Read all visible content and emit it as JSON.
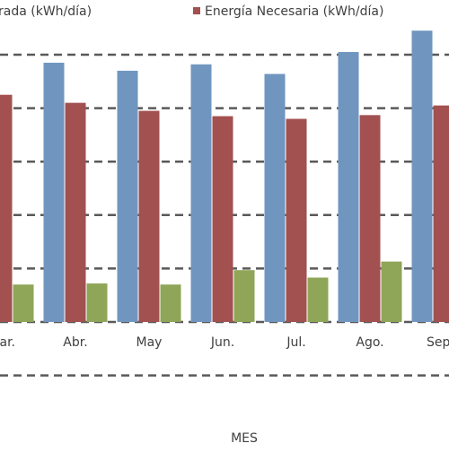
{
  "chart_data": {
    "type": "bar",
    "xlabel": "MES",
    "categories": [
      "Mar.",
      "Abr.",
      "May",
      "Jun.",
      "Jul.",
      "Ago.",
      "Sep."
    ],
    "visible_category_labels": [
      "ar.",
      "Abr.",
      "May",
      "Jun.",
      "Jul.",
      "Ago.",
      "Sep"
    ],
    "series": [
      {
        "name": "Energía Generada (kWh/día)",
        "visible_legend_label": "rada (kWh/día)",
        "color": "#7096C0",
        "values": [
          null,
          4.85,
          4.7,
          4.82,
          4.64,
          5.05,
          5.45
        ]
      },
      {
        "name": "Energía Necesaria (kWh/día)",
        "visible_legend_label": "Energía Necesaria (kWh/día)",
        "color": "#A25050",
        "values": [
          4.25,
          4.1,
          3.95,
          3.85,
          3.8,
          3.87,
          4.05
        ]
      },
      {
        "name": "",
        "color": "#8FA558",
        "values": [
          0.7,
          0.72,
          0.7,
          0.97,
          0.83,
          1.13,
          null
        ]
      }
    ],
    "ylim": [
      -1.1,
      5.6
    ],
    "gridlines": [
      -1,
      0,
      1,
      2,
      3,
      4,
      5
    ],
    "grid": true,
    "grid_style": "dashed",
    "legend_position": "top"
  }
}
